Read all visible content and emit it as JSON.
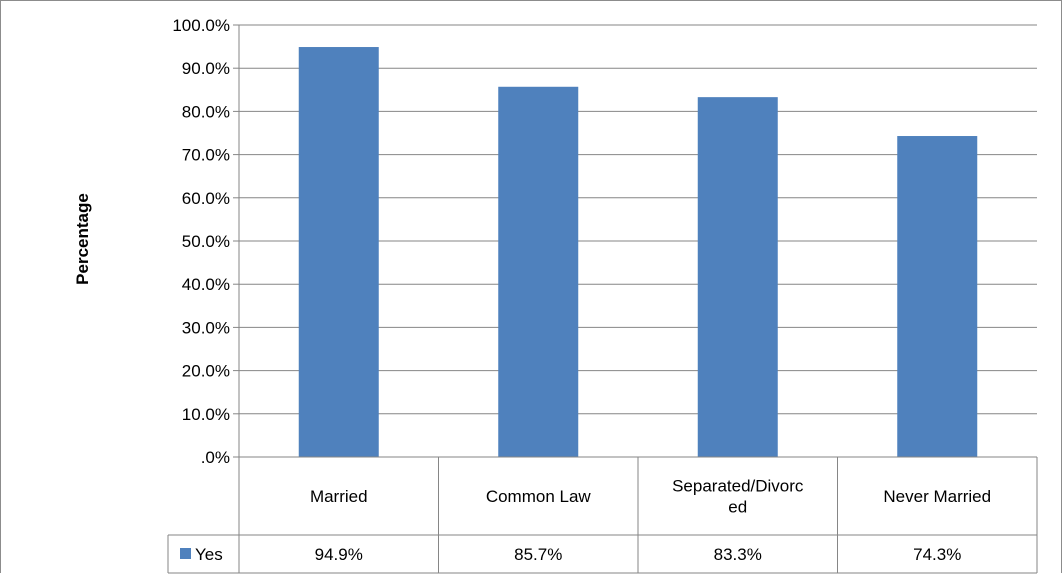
{
  "chart_data": {
    "type": "bar",
    "ylabel": "Percentage",
    "ylim": [
      0,
      100
    ],
    "y_tick_labels": [
      ".0%",
      "10.0%",
      "20.0%",
      "30.0%",
      "40.0%",
      "50.0%",
      "60.0%",
      "70.0%",
      "80.0%",
      "90.0%",
      "100.0%"
    ],
    "category_labels": [
      [
        "Married"
      ],
      [
        "Common Law"
      ],
      [
        "Separated/Divorc",
        "ed"
      ],
      [
        "Never Married"
      ]
    ],
    "series": [
      {
        "name": "Yes",
        "color": "#4f81bd",
        "values": [
          94.9,
          85.7,
          83.3,
          74.3
        ],
        "value_labels": [
          "94.9%",
          "85.7%",
          "83.3%",
          "74.3%"
        ]
      }
    ],
    "grid": true,
    "legend_placement": "data-table-left",
    "data_table": true
  }
}
